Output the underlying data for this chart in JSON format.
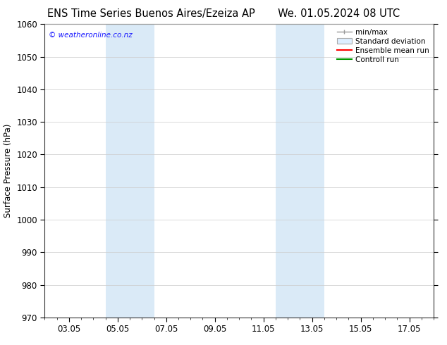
{
  "title_left": "ENS Time Series Buenos Aires/Ezeiza AP",
  "title_right": "We. 01.05.2024 08 UTC",
  "ylabel": "Surface Pressure (hPa)",
  "ylim": [
    970,
    1060
  ],
  "yticks": [
    970,
    980,
    990,
    1000,
    1010,
    1020,
    1030,
    1040,
    1050,
    1060
  ],
  "xtick_labels": [
    "03.05",
    "05.05",
    "07.05",
    "09.05",
    "11.05",
    "13.05",
    "15.05",
    "17.05"
  ],
  "xtick_positions": [
    2,
    4,
    6,
    8,
    10,
    12,
    14,
    16
  ],
  "xlim": [
    1,
    17
  ],
  "shaded_bands": [
    {
      "x_start": 3.5,
      "x_end": 4.5,
      "color": "#daeaf7"
    },
    {
      "x_start": 4.5,
      "x_end": 5.5,
      "color": "#daeaf7"
    },
    {
      "x_start": 10.5,
      "x_end": 11.5,
      "color": "#daeaf7"
    },
    {
      "x_start": 11.5,
      "x_end": 12.5,
      "color": "#daeaf7"
    }
  ],
  "legend_labels": [
    "min/max",
    "Standard deviation",
    "Ensemble mean run",
    "Controll run"
  ],
  "legend_colors": [
    "#999999",
    "#cccccc",
    "#ff0000",
    "#009900"
  ],
  "watermark": "© weatheronline.co.nz",
  "watermark_color": "#1a1aff",
  "background_color": "#ffffff",
  "plot_bg_color": "#ffffff",
  "grid_color": "#cccccc",
  "title_fontsize": 10.5,
  "axis_fontsize": 8.5,
  "tick_fontsize": 8.5
}
